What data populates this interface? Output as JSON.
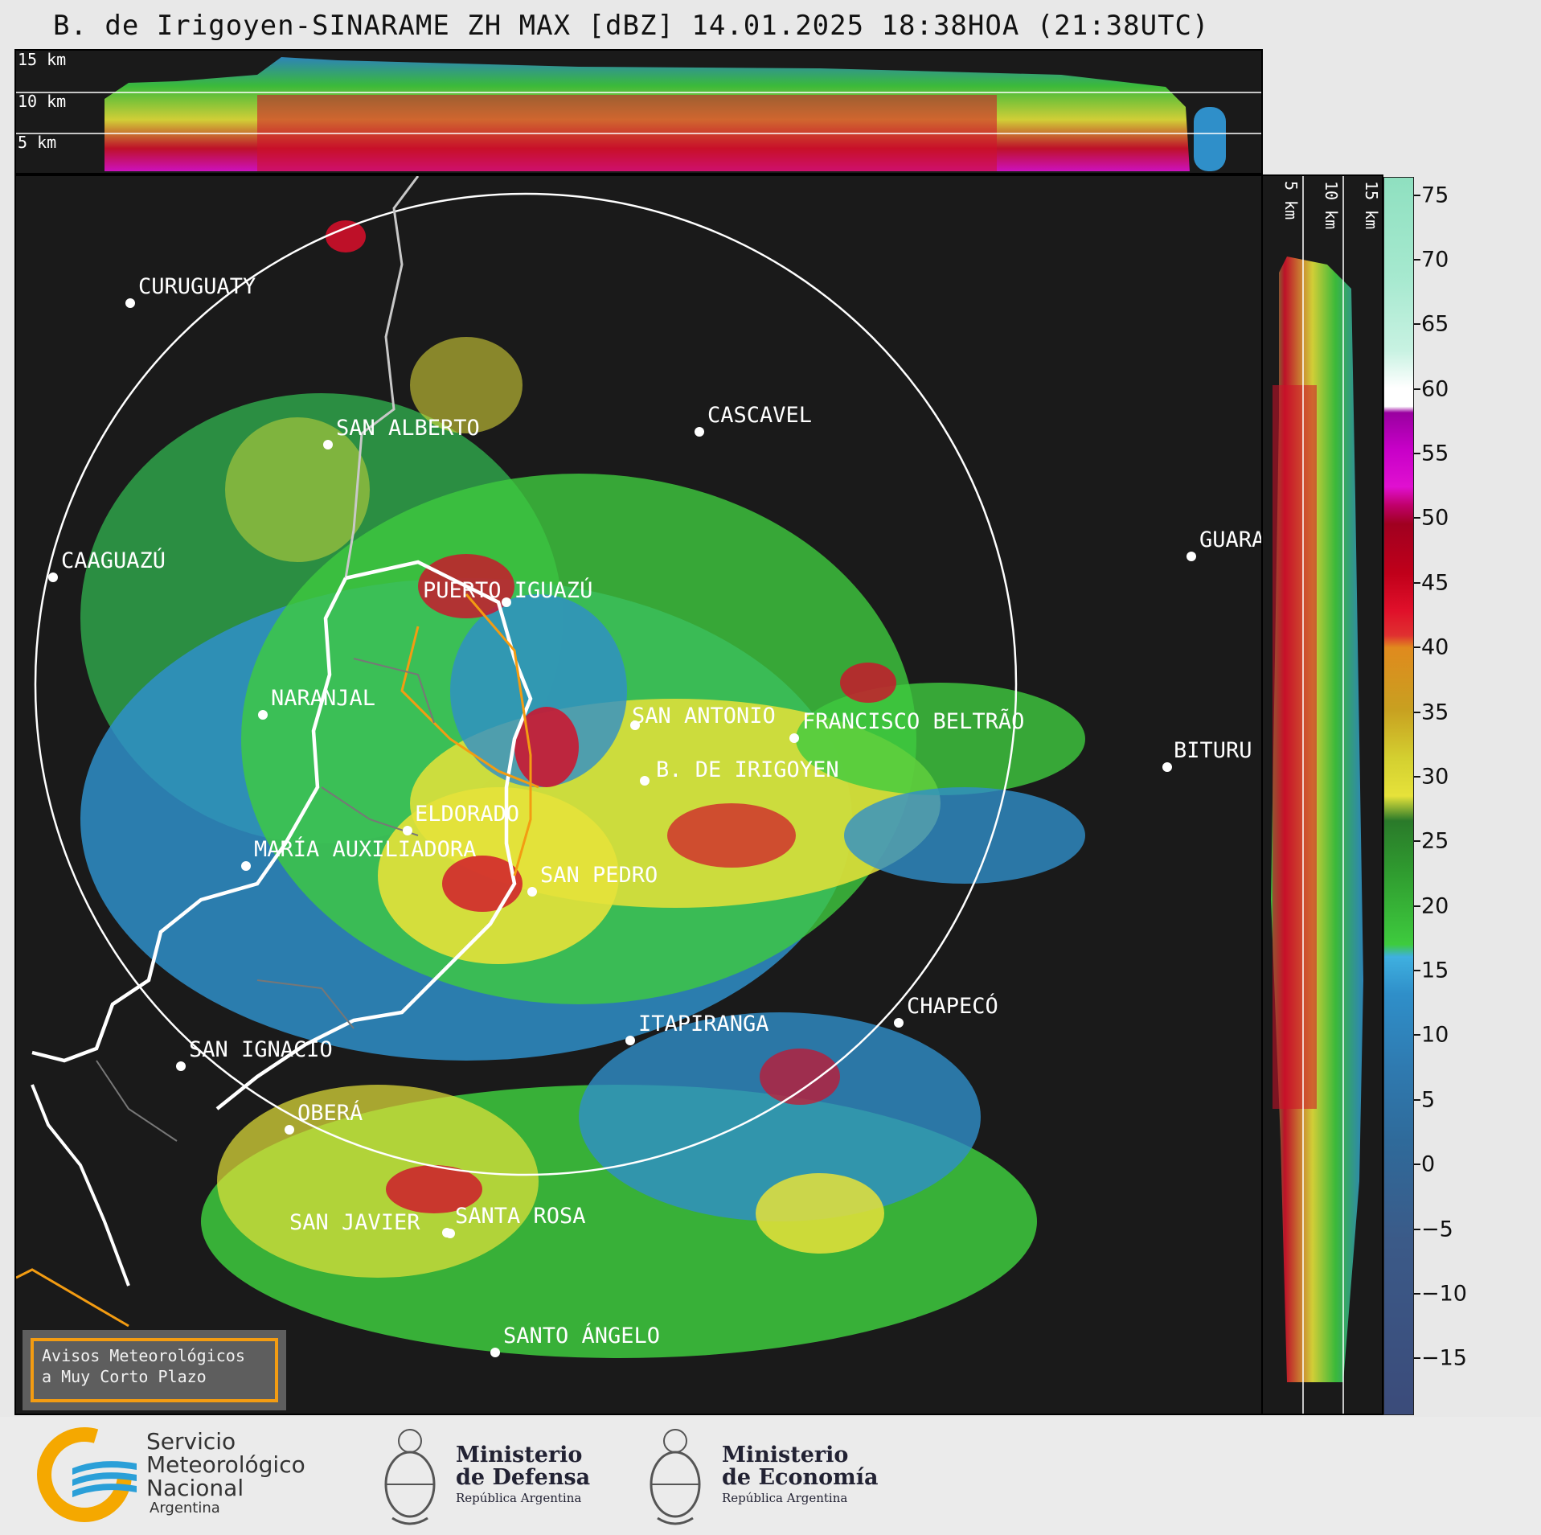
{
  "title": "B. de Irigoyen-SINARAME ZH MAX [dBZ] 14.01.2025 18:38HOA (21:38UTC)",
  "top_panel": {
    "height_labels": [
      "15 km",
      "10 km",
      "5 km"
    ]
  },
  "right_panel": {
    "height_labels": [
      "5 km",
      "10 km",
      "15 km"
    ]
  },
  "colorbar": {
    "ticks": [
      "75",
      "70",
      "65",
      "60",
      "55",
      "50",
      "45",
      "40",
      "35",
      "30",
      "25",
      "20",
      "15",
      "10",
      "5",
      "0",
      "−5",
      "−10",
      "−15"
    ],
    "colors": {
      "dark": "#1a1a1a",
      "blue_dark": "#3b4b7a",
      "blue": "#2f8fc9",
      "cyan": "#3fb0e0",
      "green": "#3ecb3e",
      "green_dark": "#2a8a2a",
      "yellow": "#e6e23a",
      "orange": "#e08a1e",
      "red": "#d0102a",
      "magenta": "#e010d0",
      "white": "#ffffff",
      "mint": "#8fe0c0"
    }
  },
  "cities": [
    {
      "name": "CURUGUATY"
    },
    {
      "name": "SAN ALBERTO"
    },
    {
      "name": "CASCAVEL"
    },
    {
      "name": "CAAGUAZÚ"
    },
    {
      "name": "GUARA"
    },
    {
      "name": "PUERTO IGUAZÚ"
    },
    {
      "name": "NARANJAL"
    },
    {
      "name": "SAN ANTONIO"
    },
    {
      "name": "FRANCISCO BELTRÃO"
    },
    {
      "name": "BITURU"
    },
    {
      "name": "B. DE IRIGOYEN"
    },
    {
      "name": "ELDORADO"
    },
    {
      "name": "MARÍA AUXILIADORA"
    },
    {
      "name": "SAN PEDRO"
    },
    {
      "name": "CHAPECÓ"
    },
    {
      "name": "ITAPIRANGA"
    },
    {
      "name": "SAN IGNACIO"
    },
    {
      "name": "OBERÁ"
    },
    {
      "name": "SAN JAVIER"
    },
    {
      "name": "SANTA ROSA"
    },
    {
      "name": "SANTO ÁNGELO"
    }
  ],
  "warning_box": {
    "line1": "Avisos Meteorológicos",
    "line2": "a Muy Corto Plazo"
  },
  "footer": {
    "smn": {
      "line1": "Servicio",
      "line2": "Meteorológico",
      "line3": "Nacional",
      "line4": "Argentina"
    },
    "defensa": {
      "line1": "Ministerio",
      "line2": "de Defensa",
      "line3": "República Argentina"
    },
    "economia": {
      "line1": "Ministerio",
      "line2": "de Economía",
      "line3": "República Argentina"
    }
  }
}
